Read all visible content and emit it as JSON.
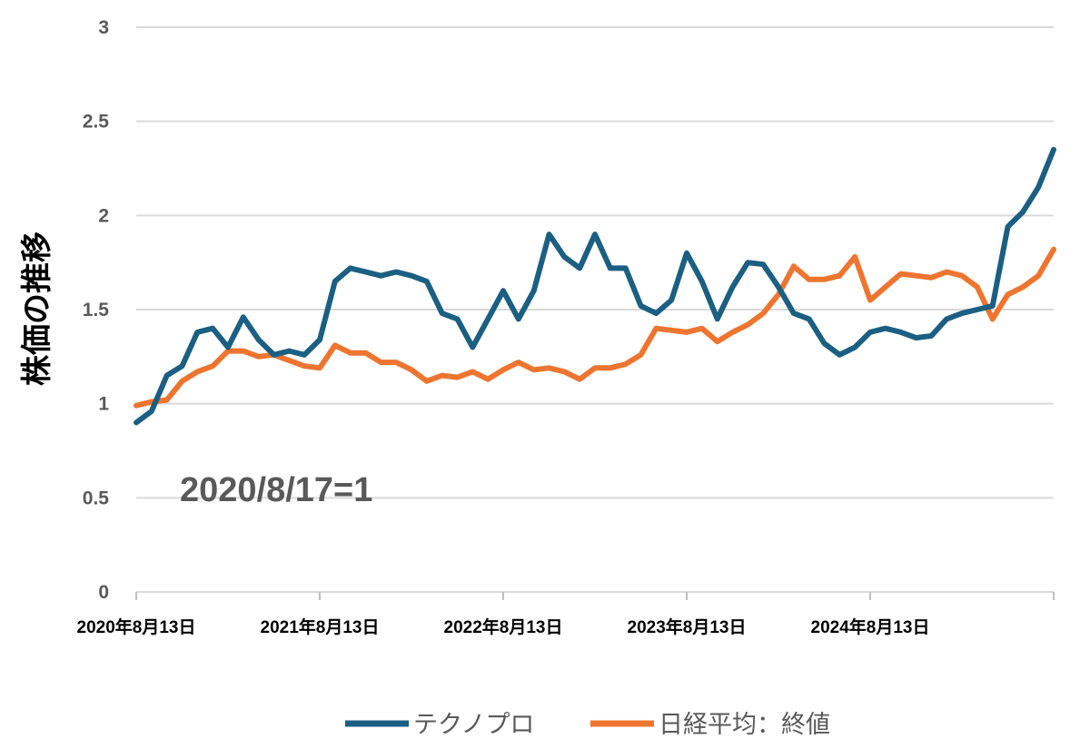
{
  "chart_data": {
    "type": "line",
    "ylabel": "株価の推移",
    "annotation": "2020/8/17=1",
    "ylim": [
      0,
      3
    ],
    "yticks": [
      "0",
      "0.5",
      "1",
      "1.5",
      "2",
      "2.5",
      "3"
    ],
    "xlim": [
      "2020-08",
      "2025-08"
    ],
    "xticks": [
      "2020年8月13日",
      "2021年8月13日",
      "2022年8月13日",
      "2023年8月13日",
      "2024年8月13日"
    ],
    "grid": true,
    "legend": "bottom",
    "x": [
      "2020-08",
      "2020-09",
      "2020-10",
      "2020-11",
      "2020-12",
      "2021-01",
      "2021-02",
      "2021-03",
      "2021-04",
      "2021-05",
      "2021-06",
      "2021-07",
      "2021-08",
      "2021-09",
      "2021-10",
      "2021-11",
      "2021-12",
      "2022-01",
      "2022-02",
      "2022-03",
      "2022-04",
      "2022-05",
      "2022-06",
      "2022-07",
      "2022-08",
      "2022-09",
      "2022-10",
      "2022-11",
      "2022-12",
      "2023-01",
      "2023-02",
      "2023-03",
      "2023-04",
      "2023-05",
      "2023-06",
      "2023-07",
      "2023-08",
      "2023-09",
      "2023-10",
      "2023-11",
      "2023-12",
      "2024-01",
      "2024-02",
      "2024-03",
      "2024-04",
      "2024-05",
      "2024-06",
      "2024-07",
      "2024-08",
      "2024-09",
      "2024-10",
      "2024-11",
      "2024-12",
      "2025-01",
      "2025-02",
      "2025-03",
      "2025-04",
      "2025-05",
      "2025-06",
      "2025-07",
      "2025-08"
    ],
    "series": [
      {
        "name": "テクノプロ",
        "color": "#1b5f82",
        "values": [
          0.9,
          0.96,
          1.15,
          1.2,
          1.38,
          1.4,
          1.3,
          1.46,
          1.34,
          1.26,
          1.28,
          1.26,
          1.34,
          1.65,
          1.72,
          1.7,
          1.68,
          1.7,
          1.68,
          1.65,
          1.48,
          1.45,
          1.3,
          1.45,
          1.6,
          1.45,
          1.6,
          1.9,
          1.78,
          1.72,
          1.9,
          1.72,
          1.72,
          1.52,
          1.48,
          1.55,
          1.8,
          1.65,
          1.45,
          1.62,
          1.75,
          1.74,
          1.62,
          1.48,
          1.45,
          1.32,
          1.26,
          1.3,
          1.38,
          1.4,
          1.38,
          1.35,
          1.36,
          1.45,
          1.48,
          1.5,
          1.52,
          1.94,
          2.02,
          2.15,
          2.35
        ]
      },
      {
        "name": "日経平均：終値",
        "color": "#ee7530",
        "values": [
          0.99,
          1.01,
          1.02,
          1.12,
          1.17,
          1.2,
          1.28,
          1.28,
          1.25,
          1.26,
          1.23,
          1.2,
          1.19,
          1.31,
          1.27,
          1.27,
          1.22,
          1.22,
          1.18,
          1.12,
          1.15,
          1.14,
          1.17,
          1.13,
          1.18,
          1.22,
          1.18,
          1.19,
          1.17,
          1.13,
          1.19,
          1.19,
          1.21,
          1.26,
          1.4,
          1.39,
          1.38,
          1.4,
          1.33,
          1.38,
          1.42,
          1.48,
          1.58,
          1.73,
          1.66,
          1.66,
          1.68,
          1.78,
          1.55,
          1.62,
          1.69,
          1.68,
          1.67,
          1.7,
          1.68,
          1.62,
          1.45,
          1.58,
          1.62,
          1.68,
          1.82
        ]
      }
    ]
  }
}
